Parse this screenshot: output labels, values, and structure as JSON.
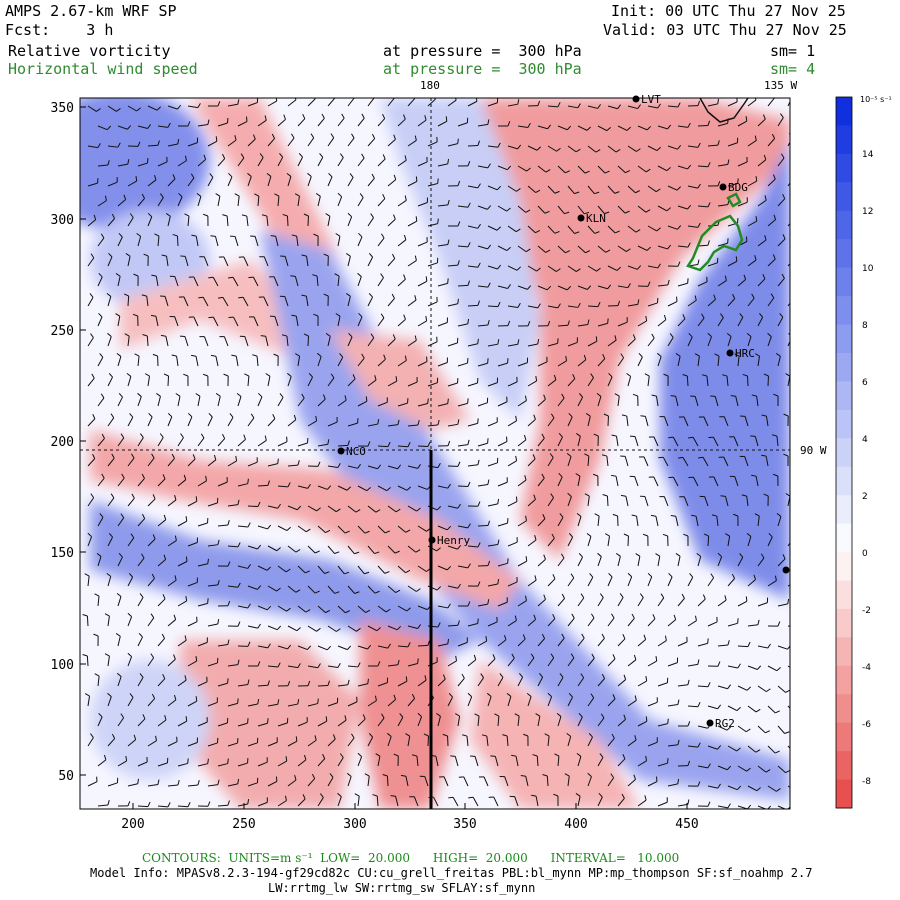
{
  "header": {
    "model": "AMPS 2.67-km WRF SP",
    "forecast": "Fcst:    3 h",
    "init": "Init: 00 UTC Thu 27 Nov 25",
    "valid": "Valid: 03 UTC Thu 27 Nov 25",
    "field1": "Relative vorticity",
    "field1_level": "at pressure =  300 hPa",
    "field1_sm": "sm= 1",
    "field2": "Horizontal wind speed",
    "field2_level": "at pressure =  300 hPa",
    "field2_sm": "sm= 4"
  },
  "map": {
    "meridian_180": "180",
    "meridian_135w": "135 W",
    "meridian_90w": "90 W",
    "x_ticks": [
      "200",
      "250",
      "300",
      "350",
      "400",
      "450"
    ],
    "y_ticks": [
      "350",
      "300",
      "250",
      "200",
      "150",
      "100",
      "50"
    ],
    "stations": [
      {
        "name": "LVT",
        "label": "LVT"
      },
      {
        "name": "BDG",
        "label": "BDG"
      },
      {
        "name": "KLN",
        "label": "KLN"
      },
      {
        "name": "HRC",
        "label": "HRC"
      },
      {
        "name": "NCO",
        "label": "NCO"
      },
      {
        "name": "Henry",
        "label": "Henry"
      },
      {
        "name": "RG2",
        "label": "RG2"
      },
      {
        "name": "edge",
        "label": ""
      }
    ],
    "colors": {
      "positive": "#1030e0",
      "negative": "#e85050",
      "contour": "#228b22"
    }
  },
  "colorbar": {
    "unit": "10⁻⁵ s⁻¹",
    "labels": [
      "14",
      "12",
      "10",
      "8",
      "6",
      "4",
      "2",
      "0",
      "-2",
      "-4",
      "-6",
      "-8"
    ]
  },
  "footer": {
    "contours": "CONTOURS:  UNITS=m s⁻¹  LOW=  20.000      HIGH=  20.000      INTERVAL=   10.000",
    "model_info": "Model Info: MPASv8.2.3-194-gf29cd82c CU:cu_grell_freitas PBL:bl_mynn MP:mp_thompson SF:sf_noahmp 2.7",
    "model_info2": "LW:rrtmg_lw SW:rrtmg_sw SFLAY:sf_mynn"
  }
}
